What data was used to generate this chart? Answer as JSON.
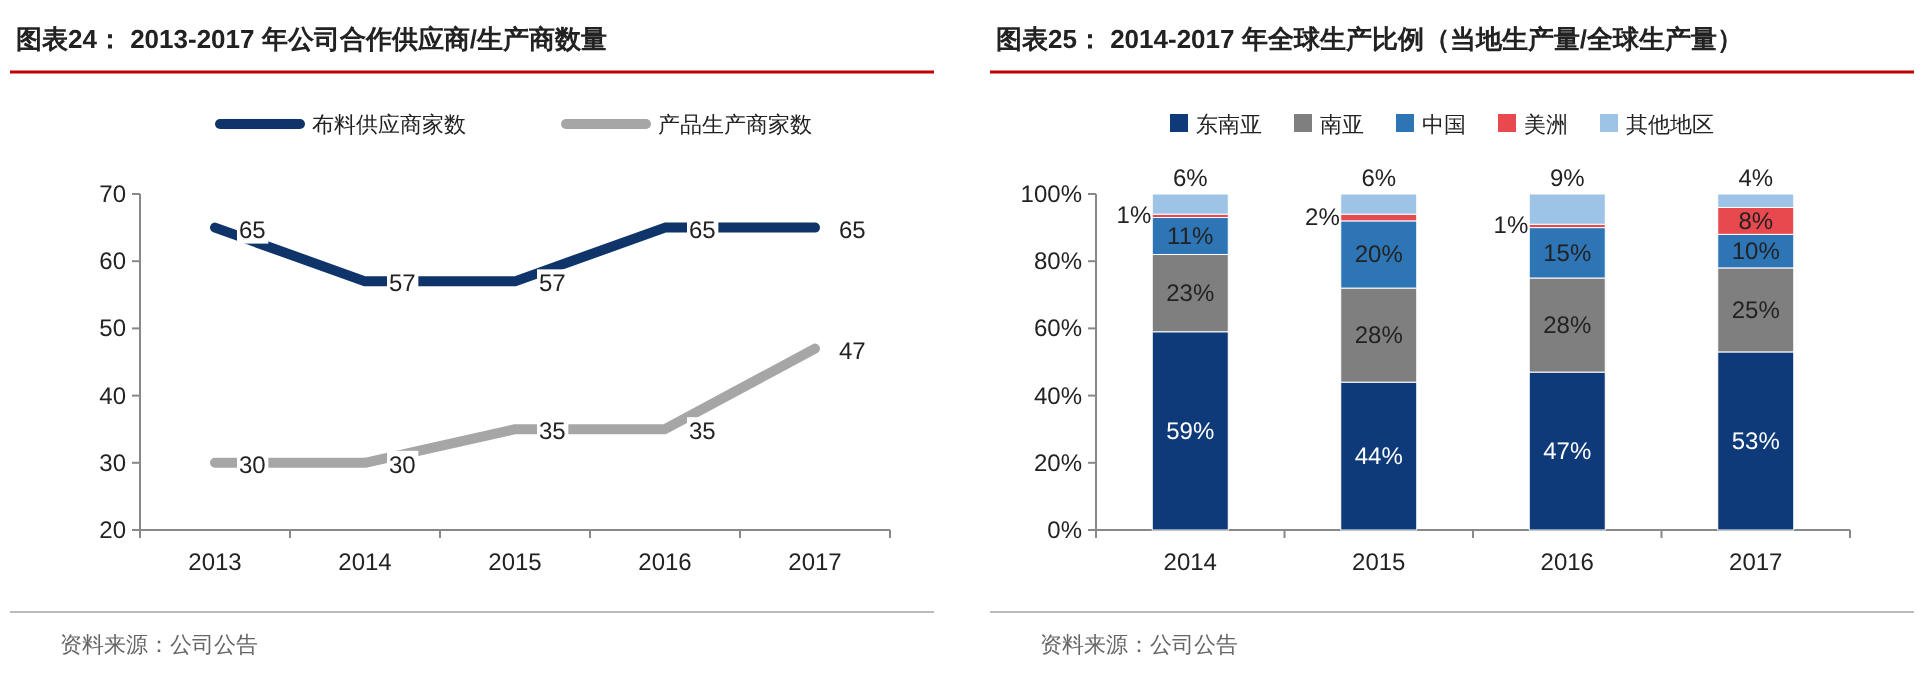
{
  "chart_data": [
    {
      "type": "line",
      "title": "图表24： 2013-2017 年公司合作供应商/生产商数量",
      "categories": [
        "2013",
        "2014",
        "2015",
        "2016",
        "2017"
      ],
      "series": [
        {
          "name": "布料供应商家数",
          "color": "#0e3469",
          "values": [
            65,
            57,
            57,
            65,
            65
          ]
        },
        {
          "name": "产品生产商家数",
          "color": "#a6a6a6",
          "values": [
            30,
            30,
            35,
            35,
            47
          ]
        }
      ],
      "ylim": [
        20,
        70
      ],
      "yticks": [
        20,
        30,
        40,
        50,
        60,
        70
      ],
      "grid": false,
      "legend": "top",
      "marker": "none",
      "line_style": "solid",
      "data_labels": true,
      "annotations": [
        "资料来源：公司公告"
      ]
    },
    {
      "type": "bar",
      "stacked": true,
      "title": "图表25： 2014-2017 年全球生产比例（当地生产量/全球生产量）",
      "categories": [
        "2014",
        "2015",
        "2016",
        "2017"
      ],
      "series": [
        {
          "name": "东南亚",
          "color": "#0e3a7a",
          "values": [
            59,
            44,
            47,
            53
          ],
          "value_labels": [
            "59%",
            "44%",
            "47%",
            "53%"
          ]
        },
        {
          "name": "南亚",
          "color": "#7f7f7f",
          "values": [
            23,
            28,
            28,
            25
          ],
          "value_labels": [
            "23%",
            "28%",
            "28%",
            "25%"
          ]
        },
        {
          "name": "中国",
          "color": "#2e75b6",
          "values": [
            11,
            20,
            15,
            10
          ],
          "value_labels": [
            "11%",
            "20%",
            "15%",
            "10%"
          ]
        },
        {
          "name": "美洲",
          "color": "#e8494f",
          "values": [
            1,
            2,
            1,
            8
          ],
          "value_labels": [
            "1%",
            "2%",
            "1%",
            "8%"
          ]
        },
        {
          "name": "其他地区",
          "color": "#9dc3e6",
          "values": [
            6,
            6,
            9,
            4
          ],
          "value_labels": [
            "6%",
            "6%",
            "9%",
            "4%"
          ]
        }
      ],
      "ylim": [
        0,
        100
      ],
      "yticks": [
        {
          "value": 0,
          "label": "0%"
        },
        {
          "value": 20,
          "label": "20%"
        },
        {
          "value": 40,
          "label": "40%"
        },
        {
          "value": 60,
          "label": "60%"
        },
        {
          "value": 80,
          "label": "80%"
        },
        {
          "value": 100,
          "label": "100%"
        }
      ],
      "grid": false,
      "legend": "top",
      "annotations": [
        "资料来源：公司公告"
      ]
    }
  ]
}
